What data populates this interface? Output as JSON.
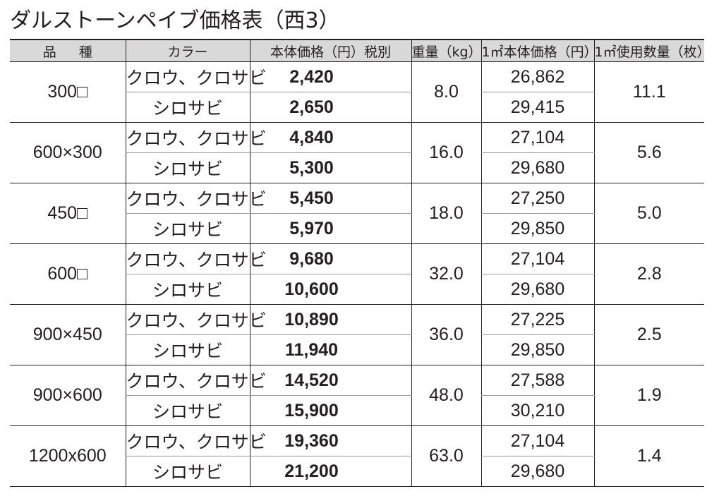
{
  "title": "ダルストーンペイブ価格表（西3）",
  "headers": {
    "hinshu": [
      "品",
      "種"
    ],
    "color": "カラー",
    "price": "本体価格（円）税別",
    "weight": "重量（kg）",
    "sqm_price": "1㎡本体価格（円）",
    "qty": "1㎡使用数量（枚）"
  },
  "rows": [
    {
      "size": "300□",
      "weight": "8.0",
      "qty": "11.1",
      "variants": [
        {
          "color": "クロウ、クロサビ",
          "price": "2,420",
          "sqm_price": "26,862"
        },
        {
          "color": "シロサビ",
          "price": "2,650",
          "sqm_price": "29,415"
        }
      ]
    },
    {
      "size": "600×300",
      "weight": "16.0",
      "qty": "5.6",
      "variants": [
        {
          "color": "クロウ、クロサビ",
          "price": "4,840",
          "sqm_price": "27,104"
        },
        {
          "color": "シロサビ",
          "price": "5,300",
          "sqm_price": "29,680"
        }
      ]
    },
    {
      "size": "450□",
      "weight": "18.0",
      "qty": "5.0",
      "variants": [
        {
          "color": "クロウ、クロサビ",
          "price": "5,450",
          "sqm_price": "27,250"
        },
        {
          "color": "シロサビ",
          "price": "5,970",
          "sqm_price": "29,850"
        }
      ]
    },
    {
      "size": "600□",
      "weight": "32.0",
      "qty": "2.8",
      "variants": [
        {
          "color": "クロウ、クロサビ",
          "price": "9,680",
          "sqm_price": "27,104"
        },
        {
          "color": "シロサビ",
          "price": "10,600",
          "sqm_price": "29,680"
        }
      ]
    },
    {
      "size": "900×450",
      "weight": "36.0",
      "qty": "2.5",
      "variants": [
        {
          "color": "クロウ、クロサビ",
          "price": "10,890",
          "sqm_price": "27,225"
        },
        {
          "color": "シロサビ",
          "price": "11,940",
          "sqm_price": "29,850"
        }
      ]
    },
    {
      "size": "900×600",
      "weight": "48.0",
      "qty": "1.9",
      "variants": [
        {
          "color": "クロウ、クロサビ",
          "price": "14,520",
          "sqm_price": "27,588"
        },
        {
          "color": "シロサビ",
          "price": "15,900",
          "sqm_price": "30,210"
        }
      ]
    },
    {
      "size": "1200x600",
      "weight": "63.0",
      "qty": "1.4",
      "variants": [
        {
          "color": "クロウ、クロサビ",
          "price": "19,360",
          "sqm_price": "27,104"
        },
        {
          "color": "シロサビ",
          "price": "21,200",
          "sqm_price": "29,680"
        }
      ]
    }
  ]
}
